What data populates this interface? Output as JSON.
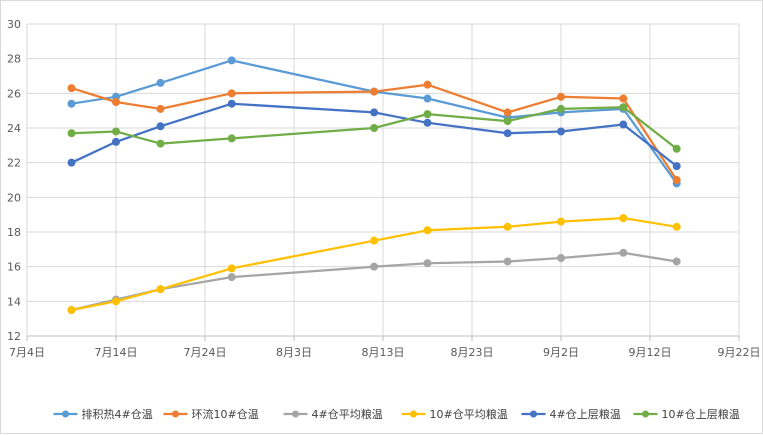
{
  "chart_data": {
    "type": "line",
    "title": "",
    "xlabel": "",
    "ylabel": "",
    "ylim": [
      12,
      30
    ],
    "y_ticks": [
      12,
      14,
      16,
      18,
      20,
      22,
      24,
      26,
      28,
      30
    ],
    "x_ticks": [
      "7月4日",
      "7月14日",
      "7月24日",
      "8月3日",
      "8月13日",
      "8月23日",
      "9月2日",
      "9月12日",
      "9月22日"
    ],
    "x_dates": [
      "2023-07-04",
      "2023-07-14",
      "2023-07-24",
      "2023-08-03",
      "2023-08-13",
      "2023-08-23",
      "2023-09-02",
      "2023-09-12",
      "2023-09-22"
    ],
    "xlim": [
      "2023-07-04",
      "2023-09-22"
    ],
    "grid": true,
    "legend_position": "bottom",
    "x": [
      "2023-07-09",
      "2023-07-14",
      "2023-07-19",
      "2023-07-27",
      "2023-08-12",
      "2023-08-18",
      "2023-08-27",
      "2023-09-02",
      "2023-09-09",
      "2023-09-15"
    ],
    "series": [
      {
        "name": "排积热4#仓温",
        "color": "#5b9bd5",
        "values": [
          25.4,
          25.8,
          26.6,
          27.9,
          26.1,
          25.7,
          24.6,
          24.9,
          25.1,
          20.8
        ]
      },
      {
        "name": "环流10#仓温",
        "color": "#ed7d31",
        "values": [
          26.3,
          25.5,
          25.1,
          26.0,
          26.1,
          26.5,
          24.9,
          25.8,
          25.7,
          21.0
        ]
      },
      {
        "name": "4#仓平均粮温",
        "color": "#a5a5a5",
        "values": [
          13.5,
          14.1,
          14.7,
          15.4,
          16.0,
          16.2,
          16.3,
          16.5,
          16.8,
          16.3
        ]
      },
      {
        "name": "10#仓平均粮温",
        "color": "#ffc000",
        "values": [
          13.5,
          14.0,
          14.7,
          15.9,
          17.5,
          18.1,
          18.3,
          18.6,
          18.8,
          18.3
        ]
      },
      {
        "name": "4#仓上层粮温",
        "color": "#4472c4",
        "values": [
          22.0,
          23.2,
          24.1,
          25.4,
          24.9,
          24.3,
          23.7,
          23.8,
          24.2,
          21.8
        ]
      },
      {
        "name": "10#仓上层粮温",
        "color": "#70ad47",
        "values": [
          23.7,
          23.8,
          23.1,
          23.4,
          24.0,
          24.8,
          24.4,
          25.1,
          25.2,
          22.8
        ]
      }
    ]
  }
}
